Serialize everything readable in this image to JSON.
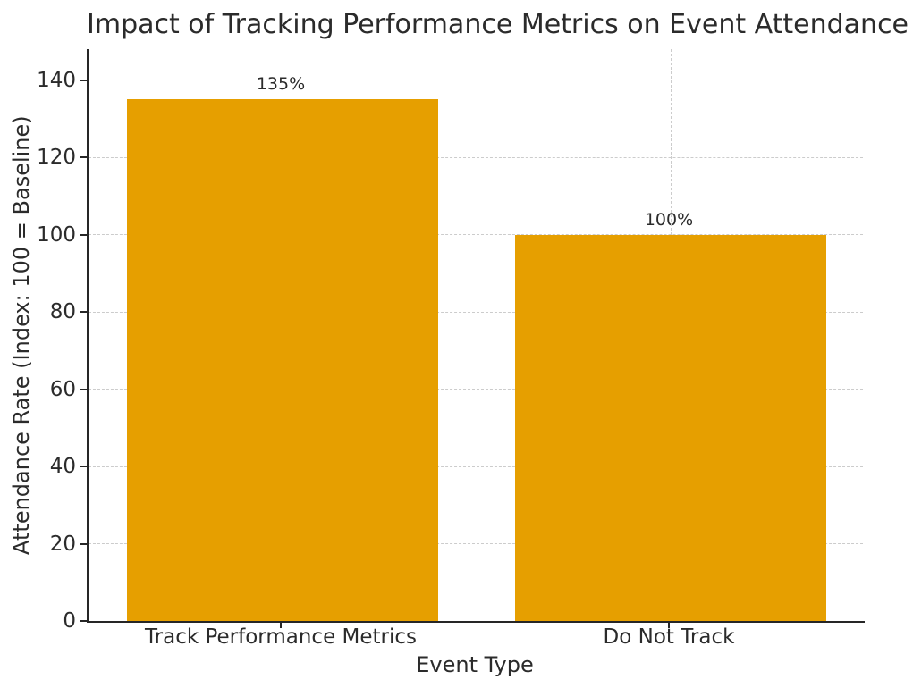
{
  "chart_data": {
    "type": "bar",
    "title": "Impact of Tracking Performance Metrics on Event Attendance",
    "xlabel": "Event Type",
    "ylabel": "Attendance Rate (Index: 100 = Baseline)",
    "categories": [
      "Track Performance Metrics",
      "Do Not Track"
    ],
    "values": [
      135,
      100
    ],
    "bar_labels": [
      "135%",
      "100%"
    ],
    "yticks": [
      0,
      20,
      40,
      60,
      80,
      100,
      120,
      140
    ],
    "ylim": [
      0,
      148
    ],
    "grid": true,
    "grid_style": "dashed",
    "legend": "none",
    "colors": {
      "bar": "#E69F00",
      "grid": "#cccccc",
      "axis": "#262626",
      "text": "#2b2b2b",
      "background": "#ffffff"
    }
  }
}
